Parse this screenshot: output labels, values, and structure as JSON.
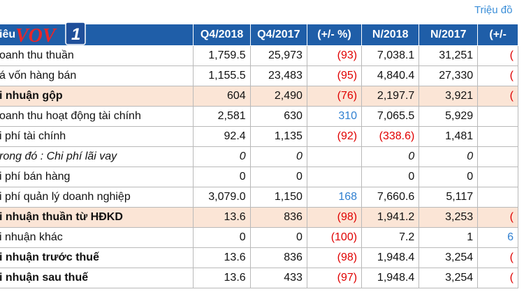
{
  "unit_note": "Triệu đồ",
  "header": {
    "item": "iêu",
    "cols": [
      "Q4/2018",
      "Q4/2017",
      "(+/- %)",
      "N/2018",
      "N/2017",
      "(+/-"
    ]
  },
  "rows": [
    {
      "label": "oanh thu thuần",
      "q418": "1,759.5",
      "q417": "25,973",
      "pct": "(93)",
      "n18": "7,038.1",
      "n17": "31,251",
      "pct2": "(",
      "style": "normal"
    },
    {
      "label": "á vốn hàng bán",
      "q418": "1,155.5",
      "q417": "23,483",
      "pct": "(95)",
      "n18": "4,840.4",
      "n17": "27,330",
      "pct2": "(",
      "style": "normal"
    },
    {
      "label": "i nhuận gộp",
      "q418": "604",
      "q417": "2,490",
      "pct": "(76)",
      "n18": "2,197.7",
      "n17": "3,921",
      "pct2": "(",
      "style": "hl"
    },
    {
      "label": "oanh thu hoạt động tài chính",
      "q418": "2,581",
      "q417": "630",
      "pct": "310",
      "n18": "7,065.5",
      "n17": "5,929",
      "pct2": "",
      "style": "normal"
    },
    {
      "label": "i phí tài chính",
      "q418": "92.4",
      "q417": "1,135",
      "pct": "(92)",
      "n18": "(338.6)",
      "n17": "1,481",
      "pct2": "",
      "style": "normal"
    },
    {
      "label": "rong đó : Chi phí lãi vay",
      "q418": "0",
      "q417": "0",
      "pct": "",
      "n18": "0",
      "n17": "0",
      "pct2": "",
      "style": "italic"
    },
    {
      "label": "i phí bán hàng",
      "q418": "0",
      "q417": "0",
      "pct": "",
      "n18": "0",
      "n17": "0",
      "pct2": "",
      "style": "normal"
    },
    {
      "label": "i phí quản lý doanh nghiệp",
      "q418": "3,079.0",
      "q417": "1,150",
      "pct": "168",
      "n18": "7,660.6",
      "n17": "5,117",
      "pct2": "",
      "style": "normal"
    },
    {
      "label": "i nhuận thuần từ HĐKD",
      "q418": "13.6",
      "q417": "836",
      "pct": "(98)",
      "n18": "1,941.2",
      "n17": "3,253",
      "pct2": "(",
      "style": "hl"
    },
    {
      "label": "i nhuận khác",
      "q418": "0",
      "q417": "0",
      "pct": "(100)",
      "n18": "7.2",
      "n17": "1",
      "pct2": "6",
      "style": "normal"
    },
    {
      "label": "i nhuận trước thuế",
      "q418": "13.6",
      "q417": "836",
      "pct": "(98)",
      "n18": "1,948.4",
      "n17": "3,254",
      "pct2": "(",
      "style": "bold"
    },
    {
      "label": "i nhuận sau thuế",
      "q418": "13.6",
      "q417": "433",
      "pct": "(97)",
      "n18": "1,948.4",
      "n17": "3,254",
      "pct2": "(",
      "style": "bold"
    }
  ],
  "colors": {
    "header_bg": "#1f5ea8",
    "highlight_row": "#fbe5d6",
    "negative": "#e00000",
    "positive": "#2f7fd0",
    "unit_note": "#3a8ed8"
  },
  "logo": {
    "text": "VOV",
    "badge": "1",
    "icon": "vov1-logo"
  }
}
